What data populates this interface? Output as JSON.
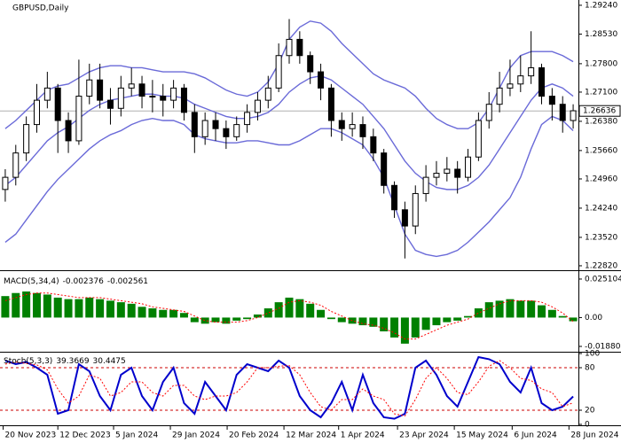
{
  "chart_data": [
    {
      "type": "candlestick",
      "title": "GBPUSD,Daily",
      "xlim": [
        0,
        55
      ],
      "xticks": [
        {
          "value": 0.3,
          "label": "20 Nov 2023"
        },
        {
          "value": 5.5,
          "label": "12 Dec 2023"
        },
        {
          "value": 10.8,
          "label": "5 Jan 2024"
        },
        {
          "value": 16.2,
          "label": "29 Jan 2024"
        },
        {
          "value": 21.6,
          "label": "20 Feb 2024"
        },
        {
          "value": 27,
          "label": "12 Mar 2024"
        },
        {
          "value": 32.2,
          "label": "1 Apr 2024"
        },
        {
          "value": 37.8,
          "label": "23 Apr 2024"
        },
        {
          "value": 43.2,
          "label": "15 May 2024"
        },
        {
          "value": 48.7,
          "label": "6 Jun 2024"
        },
        {
          "value": 54.1,
          "label": "28 Jun 2024"
        }
      ],
      "ylim": [
        1.2271,
        1.2937
      ],
      "yticks": [
        {
          "value": 1.2924,
          "label": "1.29240"
        },
        {
          "value": 1.2853,
          "label": "1.28530"
        },
        {
          "value": 1.278,
          "label": "1.27800"
        },
        {
          "value": 1.271,
          "label": "1.27100"
        },
        {
          "value": 1.2638,
          "label": "1.26380"
        },
        {
          "value": 1.2566,
          "label": "1.25660"
        },
        {
          "value": 1.2496,
          "label": "1.24960"
        },
        {
          "value": 1.2424,
          "label": "1.24240"
        },
        {
          "value": 1.2352,
          "label": "1.23520"
        },
        {
          "value": 1.2282,
          "label": "1.22820"
        }
      ],
      "last_price": 1.26636,
      "candle_color": "#000000",
      "candles": [
        [
          1.247,
          1.252,
          1.244,
          1.25
        ],
        [
          1.25,
          1.258,
          1.248,
          1.256
        ],
        [
          1.256,
          1.265,
          1.254,
          1.263
        ],
        [
          1.263,
          1.273,
          1.261,
          1.269
        ],
        [
          1.269,
          1.276,
          1.267,
          1.272
        ],
        [
          1.272,
          1.273,
          1.256,
          1.264
        ],
        [
          1.264,
          1.266,
          1.256,
          1.259
        ],
        [
          1.259,
          1.279,
          1.258,
          1.27
        ],
        [
          1.27,
          1.278,
          1.268,
          1.274
        ],
        [
          1.274,
          1.278,
          1.267,
          1.269
        ],
        [
          1.269,
          1.272,
          1.263,
          1.267
        ],
        [
          1.267,
          1.275,
          1.265,
          1.272
        ],
        [
          1.272,
          1.277,
          1.27,
          1.273
        ],
        [
          1.273,
          1.275,
          1.267,
          1.27
        ],
        [
          1.27,
          1.274,
          1.266,
          1.27
        ],
        [
          1.27,
          1.273,
          1.265,
          1.269
        ],
        [
          1.269,
          1.274,
          1.267,
          1.272
        ],
        [
          1.272,
          1.273,
          1.264,
          1.266
        ],
        [
          1.266,
          1.268,
          1.256,
          1.26
        ],
        [
          1.26,
          1.266,
          1.258,
          1.264
        ],
        [
          1.264,
          1.266,
          1.259,
          1.262
        ],
        [
          1.262,
          1.264,
          1.257,
          1.26
        ],
        [
          1.26,
          1.265,
          1.259,
          1.263
        ],
        [
          1.263,
          1.268,
          1.261,
          1.266
        ],
        [
          1.266,
          1.271,
          1.264,
          1.269
        ],
        [
          1.269,
          1.275,
          1.267,
          1.272
        ],
        [
          1.272,
          1.283,
          1.271,
          1.28
        ],
        [
          1.28,
          1.289,
          1.278,
          1.284
        ],
        [
          1.284,
          1.286,
          1.278,
          1.28
        ],
        [
          1.28,
          1.281,
          1.273,
          1.276
        ],
        [
          1.276,
          1.278,
          1.269,
          1.272
        ],
        [
          1.272,
          1.273,
          1.26,
          1.264
        ],
        [
          1.264,
          1.266,
          1.259,
          1.262
        ],
        [
          1.262,
          1.266,
          1.26,
          1.263
        ],
        [
          1.263,
          1.265,
          1.257,
          1.26
        ],
        [
          1.26,
          1.262,
          1.254,
          1.256
        ],
        [
          1.256,
          1.257,
          1.246,
          1.248
        ],
        [
          1.248,
          1.249,
          1.24,
          1.242
        ],
        [
          1.242,
          1.244,
          1.23,
          1.238
        ],
        [
          1.238,
          1.248,
          1.236,
          1.246
        ],
        [
          1.246,
          1.253,
          1.244,
          1.25
        ],
        [
          1.25,
          1.254,
          1.248,
          1.251
        ],
        [
          1.251,
          1.255,
          1.249,
          1.252
        ],
        [
          1.252,
          1.254,
          1.246,
          1.25
        ],
        [
          1.25,
          1.257,
          1.249,
          1.255
        ],
        [
          1.255,
          1.266,
          1.254,
          1.264
        ],
        [
          1.264,
          1.271,
          1.262,
          1.268
        ],
        [
          1.268,
          1.276,
          1.266,
          1.272
        ],
        [
          1.272,
          1.279,
          1.27,
          1.273
        ],
        [
          1.273,
          1.28,
          1.271,
          1.275
        ],
        [
          1.275,
          1.286,
          1.273,
          1.277
        ],
        [
          1.277,
          1.278,
          1.268,
          1.27
        ],
        [
          1.27,
          1.272,
          1.264,
          1.268
        ],
        [
          1.268,
          1.27,
          1.261,
          1.264
        ],
        [
          1.264,
          1.268,
          1.262,
          1.2664
        ]
      ],
      "bands": {
        "color": "#6a6ad8",
        "upper": [
          1.262,
          1.264,
          1.2665,
          1.269,
          1.2715,
          1.2725,
          1.273,
          1.2745,
          1.276,
          1.277,
          1.2775,
          1.2775,
          1.277,
          1.277,
          1.2765,
          1.276,
          1.276,
          1.276,
          1.2755,
          1.2745,
          1.273,
          1.2715,
          1.2705,
          1.27,
          1.271,
          1.2735,
          1.278,
          1.284,
          1.287,
          1.2885,
          1.288,
          1.286,
          1.283,
          1.2805,
          1.278,
          1.2755,
          1.274,
          1.273,
          1.272,
          1.27,
          1.267,
          1.2645,
          1.263,
          1.262,
          1.262,
          1.2635,
          1.267,
          1.272,
          1.277,
          1.28,
          1.281,
          1.281,
          1.281,
          1.28,
          1.2785
        ],
        "middle": [
          1.248,
          1.25,
          1.253,
          1.256,
          1.259,
          1.261,
          1.2625,
          1.2645,
          1.2665,
          1.268,
          1.269,
          1.2695,
          1.27,
          1.2705,
          1.2705,
          1.27,
          1.27,
          1.2695,
          1.268,
          1.267,
          1.266,
          1.265,
          1.2645,
          1.2645,
          1.265,
          1.266,
          1.268,
          1.271,
          1.273,
          1.2745,
          1.275,
          1.274,
          1.272,
          1.27,
          1.268,
          1.265,
          1.262,
          1.258,
          1.254,
          1.251,
          1.249,
          1.2475,
          1.247,
          1.247,
          1.248,
          1.25,
          1.253,
          1.257,
          1.261,
          1.265,
          1.269,
          1.272,
          1.273,
          1.272,
          1.27
        ],
        "lower": [
          1.234,
          1.236,
          1.2395,
          1.243,
          1.2465,
          1.2495,
          1.252,
          1.2545,
          1.257,
          1.259,
          1.2605,
          1.2615,
          1.263,
          1.264,
          1.2645,
          1.264,
          1.264,
          1.263,
          1.2605,
          1.2595,
          1.259,
          1.2585,
          1.2585,
          1.259,
          1.259,
          1.2585,
          1.258,
          1.258,
          1.259,
          1.2605,
          1.262,
          1.262,
          1.261,
          1.2595,
          1.258,
          1.2545,
          1.25,
          1.243,
          1.236,
          1.232,
          1.231,
          1.2305,
          1.231,
          1.232,
          1.234,
          1.2365,
          1.239,
          1.242,
          1.245,
          1.25,
          1.257,
          1.263,
          1.265,
          1.264,
          1.2615
        ]
      }
    },
    {
      "type": "bar",
      "label": "MACD(5,34,4)",
      "main_value": -0.002376,
      "signal_value": -0.002561,
      "ylim": [
        -0.0217,
        0.0297
      ],
      "yticks": [
        0.025104,
        {
          "value": 0,
          "label": "0.00"
        },
        -0.018801
      ],
      "color": "#008000",
      "values": [
        0.014,
        0.016,
        0.017,
        0.016,
        0.015,
        0.013,
        0.012,
        0.012,
        0.013,
        0.012,
        0.011,
        0.01,
        0.009,
        0.007,
        0.006,
        0.005,
        0.005,
        0.003,
        -0.003,
        -0.004,
        -0.003,
        -0.004,
        -0.002,
        -0.001,
        0.002,
        0.006,
        0.01,
        0.013,
        0.012,
        0.009,
        0.005,
        -0.001,
        -0.003,
        -0.004,
        -0.005,
        -0.006,
        -0.009,
        -0.013,
        -0.017,
        -0.013,
        -0.008,
        -0.005,
        -0.003,
        -0.002,
        0.001,
        0.006,
        0.01,
        0.011,
        0.012,
        0.011,
        0.011,
        0.008,
        0.005,
        0.001,
        -0.0024
      ],
      "signal": {
        "color": "#ff0000",
        "values": [
          0.011,
          0.013,
          0.015,
          0.016,
          0.016,
          0.015,
          0.014,
          0.013,
          0.013,
          0.013,
          0.012,
          0.011,
          0.01,
          0.009,
          0.007,
          0.006,
          0.005,
          0.004,
          0.001,
          -0.002,
          -0.003,
          -0.003,
          -0.003,
          -0.002,
          0,
          0.003,
          0.006,
          0.01,
          0.011,
          0.01,
          0.008,
          0.004,
          0.001,
          -0.002,
          -0.004,
          -0.005,
          -0.007,
          -0.01,
          -0.014,
          -0.014,
          -0.011,
          -0.008,
          -0.005,
          -0.003,
          -0.001,
          0.003,
          0.006,
          0.009,
          0.011,
          0.011,
          0.011,
          0.01,
          0.007,
          0.003,
          -0.002561
        ]
      }
    },
    {
      "type": "line",
      "label": "Stoch(5,3,3)",
      "main_value": 39.3669,
      "signal_value": 30.4475,
      "ylim": [
        0,
        100
      ],
      "yticks": [
        100,
        80,
        20,
        0
      ],
      "levels": [
        80,
        20
      ],
      "level_color": "#cc0000",
      "series": [
        {
          "color": "#0000cc",
          "values": [
            90,
            85,
            88,
            80,
            70,
            15,
            20,
            85,
            75,
            40,
            20,
            70,
            80,
            40,
            20,
            60,
            80,
            30,
            15,
            60,
            40,
            20,
            70,
            85,
            80,
            75,
            90,
            80,
            40,
            20,
            10,
            30,
            60,
            20,
            70,
            30,
            10,
            8,
            15,
            80,
            90,
            70,
            40,
            25,
            60,
            95,
            92,
            85,
            60,
            45,
            80,
            30,
            20,
            25,
            39.3669
          ]
        },
        {
          "color": "#ff0000",
          "values": [
            85,
            88,
            86,
            84,
            77,
            50,
            30,
            40,
            70,
            65,
            40,
            45,
            60,
            60,
            45,
            40,
            55,
            55,
            40,
            35,
            40,
            40,
            45,
            60,
            80,
            80,
            82,
            83,
            70,
            45,
            25,
            20,
            35,
            35,
            50,
            40,
            35,
            15,
            12,
            35,
            65,
            80,
            65,
            45,
            42,
            60,
            82,
            90,
            80,
            65,
            62,
            50,
            45,
            25,
            30.4475
          ]
        }
      ]
    }
  ]
}
